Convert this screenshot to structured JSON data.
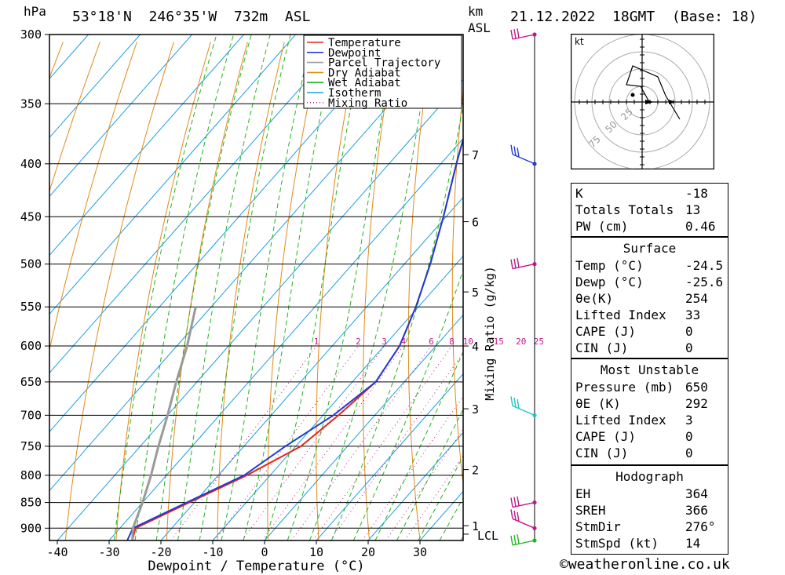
{
  "header": {
    "hpa_label": "hPa",
    "location": "53°18'N  246°35'W  732m  ASL",
    "km_label": "km",
    "asl_label": "ASL",
    "datetime": "21.12.2022  18GMT  (Base: 18)"
  },
  "chart_data": {
    "type": "line",
    "xlabel": "Dewpoint / Temperature (°C)",
    "ylabel": "hPa",
    "y2label": "Mixing Ratio (g/kg)",
    "xlim": [
      -42,
      38
    ],
    "ylim": [
      925,
      300
    ],
    "x_ticks": [
      -40,
      -30,
      -20,
      -10,
      0,
      10,
      20,
      30
    ],
    "pressure_levels": [
      300,
      350,
      400,
      450,
      500,
      550,
      600,
      650,
      700,
      750,
      800,
      850,
      900
    ],
    "km_ticks": [
      {
        "label": "7",
        "p": 392
      },
      {
        "label": "6",
        "p": 455
      },
      {
        "label": "5",
        "p": 532
      },
      {
        "label": "4",
        "p": 600
      },
      {
        "label": "3",
        "p": 690
      },
      {
        "label": "2",
        "p": 790
      },
      {
        "label": "1",
        "p": 895
      }
    ],
    "lcl_label": "LCL",
    "lcl_p": 912,
    "mixing_ratio_labels": [
      "1",
      "2",
      "3",
      "4",
      "6",
      "8",
      "10",
      "15",
      "20",
      "25"
    ],
    "legend": {
      "position": "top-right",
      "items": [
        {
          "name": "Temperature",
          "color": "#e8241b",
          "style": "solid"
        },
        {
          "name": "Dewpoint",
          "color": "#1e3cd8",
          "style": "solid"
        },
        {
          "name": "Parcel Trajectory",
          "color": "#9a9a9a",
          "style": "solid"
        },
        {
          "name": "Dry Adiabat",
          "color": "#e08a1a",
          "style": "solid"
        },
        {
          "name": "Wet Adiabat",
          "color": "#22b51f",
          "style": "solid"
        },
        {
          "name": "Isotherm",
          "color": "#1f9ee0",
          "style": "solid"
        },
        {
          "name": "Mixing Ratio",
          "color": "#c0188c",
          "style": "dotted"
        }
      ]
    },
    "series": [
      {
        "name": "Temperature",
        "color": "#e8241b",
        "points": [
          [
            -25.5,
            925
          ],
          [
            -27,
            900
          ],
          [
            -21,
            850
          ],
          [
            -14.5,
            800
          ],
          [
            -9,
            750
          ],
          [
            -7,
            700
          ],
          [
            -5.5,
            650
          ],
          [
            -7,
            600
          ],
          [
            -10.5,
            550
          ],
          [
            -15,
            500
          ],
          [
            -20.5,
            450
          ],
          [
            -27,
            400
          ],
          [
            -34,
            350
          ],
          [
            -42,
            300
          ]
        ]
      },
      {
        "name": "Dewpoint",
        "color": "#1e3cd8",
        "points": [
          [
            -26.5,
            925
          ],
          [
            -27.5,
            900
          ],
          [
            -21.5,
            850
          ],
          [
            -15,
            800
          ],
          [
            -12,
            750
          ],
          [
            -8,
            700
          ],
          [
            -5.5,
            650
          ],
          [
            -7,
            600
          ],
          [
            -10.5,
            550
          ],
          [
            -15,
            500
          ],
          [
            -20.5,
            450
          ],
          [
            -27,
            400
          ],
          [
            -34,
            350
          ],
          [
            -42,
            300
          ]
        ]
      },
      {
        "name": "Parcel Trajectory",
        "color": "#9a9a9a",
        "points": [
          [
            -25.5,
            925
          ],
          [
            -27.5,
            900
          ],
          [
            -30,
            850
          ],
          [
            -33,
            800
          ],
          [
            -36.5,
            750
          ],
          [
            -40,
            700
          ],
          [
            -44,
            650
          ],
          [
            -48,
            600
          ],
          [
            -53,
            550
          ]
        ]
      }
    ],
    "wind_profile": [
      {
        "p": 300,
        "color": "#c0188c"
      },
      {
        "p": 400,
        "color": "#1e3cd8"
      },
      {
        "p": 500,
        "color": "#c0188c"
      },
      {
        "p": 700,
        "color": "#22c4c4"
      },
      {
        "p": 850,
        "color": "#c0188c"
      },
      {
        "p": 900,
        "color": "#c0188c"
      },
      {
        "p": 925,
        "color": "#22b51f"
      }
    ]
  },
  "hodograph": {
    "unit_label": "kt",
    "ring_labels": [
      "25",
      "50",
      "75"
    ]
  },
  "indices": {
    "top": [
      {
        "label": "K",
        "value": "-18"
      },
      {
        "label": "Totals Totals",
        "value": "13"
      },
      {
        "label": "PW (cm)",
        "value": "0.46"
      }
    ],
    "surface": {
      "title": "Surface",
      "rows": [
        {
          "label": "Temp (°C)",
          "value": "-24.5"
        },
        {
          "label": "Dewp (°C)",
          "value": "-25.6"
        },
        {
          "label": "θe(K)",
          "value": "254"
        },
        {
          "label": "Lifted Index",
          "value": "33"
        },
        {
          "label": "CAPE (J)",
          "value": "0"
        },
        {
          "label": "CIN (J)",
          "value": "0"
        }
      ]
    },
    "most_unstable": {
      "title": "Most Unstable",
      "rows": [
        {
          "label": "Pressure (mb)",
          "value": "650"
        },
        {
          "label": "θE (K)",
          "value": "292"
        },
        {
          "label": "Lifted Index",
          "value": "3"
        },
        {
          "label": "CAPE (J)",
          "value": "0"
        },
        {
          "label": "CIN (J)",
          "value": "0"
        }
      ]
    },
    "hodograph": {
      "title": "Hodograph",
      "rows": [
        {
          "label": "EH",
          "value": "364"
        },
        {
          "label": "SREH",
          "value": "366"
        },
        {
          "label": "StmDir",
          "value": "276°"
        },
        {
          "label": "StmSpd (kt)",
          "value": "14"
        }
      ]
    }
  },
  "footer": {
    "copyright_icon": "copyright-icon",
    "site": "©weatheronline.co.uk"
  }
}
